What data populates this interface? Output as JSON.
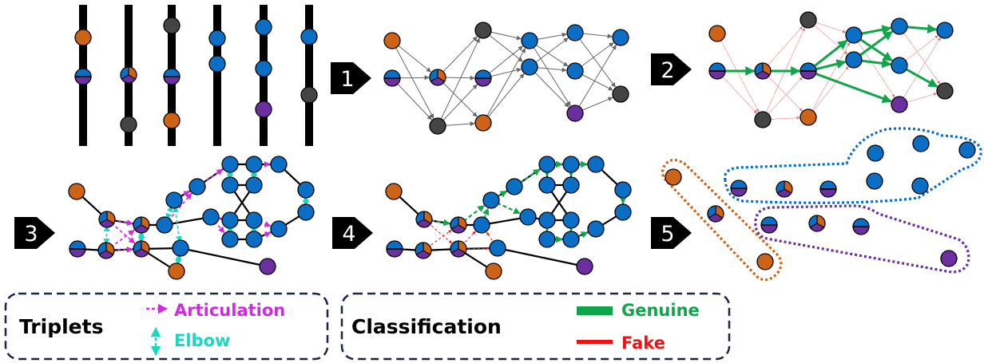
{
  "steps": [
    "1",
    "2",
    "3",
    "4",
    "5"
  ],
  "colors": {
    "orange": "#cc6316",
    "blue": "#0a6fc4",
    "purple": "#6b2fa0",
    "gray": "#444444",
    "articulation": "#d12be0",
    "elbow": "#16d9c0",
    "genuine": "#10a54a",
    "fake": "#ee1111",
    "box_border": "#1a2744"
  },
  "legend": {
    "triplets": {
      "title": "Triplets",
      "articulation": "Articulation",
      "elbow": "Elbow"
    },
    "classification": {
      "title": "Classification",
      "genuine": "Genuine",
      "fake": "Fake"
    }
  }
}
